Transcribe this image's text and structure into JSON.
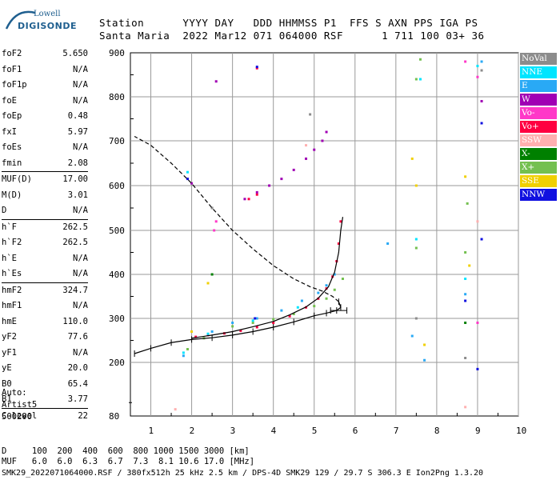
{
  "logo": {
    "line1": "Lowell",
    "line2": "DIGISONDE"
  },
  "header": {
    "labels": "Station      YYYY DAY   DDD HHMMSS P1  FFS S AXN PPS IGA PS",
    "values": "Santa Maria  2022 Mar12 071 064000 RSF      1 711 100 03+ 36"
  },
  "params_group1": [
    {
      "k": "foF2",
      "v": "5.650"
    },
    {
      "k": "foF1",
      "v": "N/A"
    },
    {
      "k": "foF1p",
      "v": "N/A"
    },
    {
      "k": "foE",
      "v": "N/A"
    },
    {
      "k": "foEp",
      "v": "0.48"
    },
    {
      "k": "fxI",
      "v": "5.97"
    },
    {
      "k": "foEs",
      "v": "N/A"
    },
    {
      "k": "fmin",
      "v": "2.08"
    }
  ],
  "params_group2": [
    {
      "k": "MUF(D)",
      "v": "17.00"
    },
    {
      "k": "M(D)",
      "v": "3.01"
    },
    {
      "k": "D",
      "v": "N/A"
    }
  ],
  "params_group3": [
    {
      "k": "h`F",
      "v": "262.5"
    },
    {
      "k": "h`F2",
      "v": "262.5"
    },
    {
      "k": "h`E",
      "v": "N/A"
    },
    {
      "k": "h`Es",
      "v": "N/A"
    }
  ],
  "params_group4": [
    {
      "k": "hmF2",
      "v": "324.7"
    },
    {
      "k": "hmF1",
      "v": "N/A"
    },
    {
      "k": "hmE",
      "v": "110.0"
    },
    {
      "k": "yF2",
      "v": "77.6"
    },
    {
      "k": "yF1",
      "v": "N/A"
    },
    {
      "k": "yE",
      "v": "20.0"
    },
    {
      "k": "B0",
      "v": "65.4"
    },
    {
      "k": "B1",
      "v": "3.77"
    }
  ],
  "params_group5": [
    {
      "k": "C-level",
      "v": "22"
    }
  ],
  "auto": {
    "l1": "Auto:",
    "l2": "Artist5",
    "l3": "500200"
  },
  "legend": [
    {
      "label": "NoVal",
      "color": "#8c8c8c"
    },
    {
      "label": "NNE",
      "color": "#00e5ff"
    },
    {
      "label": "E",
      "color": "#29a9f5"
    },
    {
      "label": "W",
      "color": "#a000b4"
    },
    {
      "label": "Vo-",
      "color": "#ff38c8"
    },
    {
      "label": "Vo+",
      "color": "#ff0040"
    },
    {
      "label": "SSW",
      "color": "#ffb0b0"
    },
    {
      "label": "X-",
      "color": "#008000"
    },
    {
      "label": "X+",
      "color": "#74c050"
    },
    {
      "label": "SSE",
      "color": "#f0d000"
    },
    {
      "label": "NNW",
      "color": "#1010e0"
    }
  ],
  "footer": {
    "d_line": "D     100  200  400  600  800 1000 1500 3000 [km]",
    "muf_line": "MUF   6.0  6.0  6.3  6.7  7.3  8.1 10.6 17.0 [MHz]",
    "status": "SMK29_2022071064000.RSF / 380fx512h 25 kHz 2.5 km / DPS-4D SMK29 129 / 29.7 S 306.3 E Ion2Png 1.3.20"
  },
  "chart_data": {
    "type": "scatter",
    "xlim": [
      0.5,
      10
    ],
    "ylim": [
      80,
      900
    ],
    "x_ticks": [
      1,
      2,
      3,
      4,
      5,
      6,
      7,
      8,
      9,
      10
    ],
    "y_ticks": [
      80,
      200,
      300,
      400,
      500,
      600,
      700,
      800,
      900
    ],
    "grid": true,
    "legend_position": "right",
    "series": [
      {
        "name": "Vo+",
        "color": "#ff0040",
        "points": [
          [
            2.1,
            258
          ],
          [
            2.4,
            262
          ],
          [
            2.8,
            266
          ],
          [
            3.2,
            272
          ],
          [
            3.6,
            280
          ],
          [
            4.0,
            290
          ],
          [
            4.4,
            305
          ],
          [
            4.8,
            325
          ],
          [
            5.1,
            345
          ],
          [
            5.3,
            368
          ],
          [
            5.45,
            395
          ],
          [
            5.55,
            430
          ],
          [
            5.6,
            470
          ],
          [
            5.65,
            520
          ],
          [
            3.6,
            865
          ],
          [
            3.4,
            570
          ],
          [
            3.6,
            580
          ]
        ]
      },
      {
        "name": "X+",
        "color": "#74c050",
        "points": [
          [
            3.0,
            282
          ],
          [
            3.5,
            290
          ],
          [
            4.0,
            298
          ],
          [
            4.5,
            310
          ],
          [
            5.0,
            328
          ],
          [
            5.3,
            345
          ],
          [
            5.5,
            365
          ],
          [
            5.7,
            390
          ],
          [
            7.5,
            460
          ],
          [
            7.5,
            840
          ],
          [
            7.6,
            885
          ],
          [
            8.7,
            450
          ],
          [
            8.75,
            560
          ],
          [
            1.9,
            230
          ],
          [
            2.3,
            255
          ]
        ]
      },
      {
        "name": "W",
        "color": "#a000b4",
        "points": [
          [
            3.3,
            570
          ],
          [
            3.6,
            585
          ],
          [
            3.9,
            600
          ],
          [
            4.2,
            615
          ],
          [
            4.5,
            635
          ],
          [
            4.8,
            660
          ],
          [
            5.0,
            680
          ],
          [
            5.2,
            700
          ],
          [
            5.3,
            720
          ],
          [
            2.0,
            605
          ],
          [
            9.1,
            790
          ],
          [
            2.6,
            835
          ]
        ]
      },
      {
        "name": "E",
        "color": "#29a9f5",
        "points": [
          [
            2.5,
            270
          ],
          [
            3.0,
            290
          ],
          [
            3.6,
            300
          ],
          [
            4.2,
            318
          ],
          [
            4.7,
            340
          ],
          [
            5.1,
            358
          ],
          [
            5.3,
            375
          ],
          [
            5.5,
            400
          ],
          [
            1.8,
            215
          ],
          [
            7.4,
            260
          ],
          [
            7.7,
            205
          ],
          [
            8.7,
            355
          ],
          [
            9.1,
            880
          ],
          [
            6.8,
            470
          ]
        ]
      },
      {
        "name": "NNE",
        "color": "#00e5ff",
        "points": [
          [
            1.8,
            222
          ],
          [
            2.4,
            265
          ],
          [
            3.5,
            295
          ],
          [
            4.6,
            325
          ],
          [
            7.5,
            480
          ],
          [
            8.7,
            390
          ],
          [
            9.0,
            870
          ],
          [
            7.6,
            840
          ],
          [
            1.9,
            630
          ]
        ]
      },
      {
        "name": "NNW",
        "color": "#1010e0",
        "points": [
          [
            3.55,
            300
          ],
          [
            1.9,
            615
          ],
          [
            3.6,
            868
          ],
          [
            9.1,
            740
          ],
          [
            9.1,
            480
          ],
          [
            8.7,
            340
          ],
          [
            9.0,
            185
          ]
        ]
      },
      {
        "name": "SSE",
        "color": "#f0d000",
        "points": [
          [
            2.4,
            380
          ],
          [
            7.4,
            660
          ],
          [
            7.5,
            600
          ],
          [
            8.7,
            620
          ],
          [
            8.8,
            420
          ],
          [
            7.7,
            240
          ],
          [
            2.0,
            270
          ]
        ]
      },
      {
        "name": "Vo-",
        "color": "#ff38c8",
        "points": [
          [
            2.55,
            500
          ],
          [
            2.6,
            520
          ],
          [
            9.0,
            845
          ],
          [
            8.7,
            880
          ],
          [
            9.0,
            290
          ]
        ]
      },
      {
        "name": "SSW",
        "color": "#ffb0b0",
        "points": [
          [
            4.8,
            690
          ],
          [
            9.0,
            520
          ],
          [
            8.7,
            100
          ],
          [
            1.6,
            95
          ]
        ]
      },
      {
        "name": "X-",
        "color": "#008000",
        "points": [
          [
            2.5,
            400
          ],
          [
            8.7,
            290
          ]
        ]
      },
      {
        "name": "NoVal",
        "color": "#8c8c8c",
        "points": [
          [
            2.5,
            550
          ],
          [
            8.7,
            210
          ],
          [
            7.5,
            300
          ],
          [
            9.1,
            860
          ],
          [
            4.9,
            760
          ]
        ]
      }
    ],
    "trace": [
      [
        2.0,
        255
      ],
      [
        2.5,
        262
      ],
      [
        3.0,
        270
      ],
      [
        3.5,
        281
      ],
      [
        4.0,
        293
      ],
      [
        4.4,
        308
      ],
      [
        4.8,
        326
      ],
      [
        5.1,
        346
      ],
      [
        5.35,
        372
      ],
      [
        5.5,
        405
      ],
      [
        5.6,
        450
      ],
      [
        5.65,
        500
      ],
      [
        5.7,
        530
      ]
    ],
    "profile": [
      [
        0.6,
        220
      ],
      [
        1.0,
        232
      ],
      [
        1.5,
        245
      ],
      [
        2.0,
        252
      ],
      [
        2.5,
        256
      ],
      [
        3.0,
        262
      ],
      [
        3.5,
        270
      ],
      [
        4.0,
        280
      ],
      [
        4.5,
        292
      ],
      [
        5.0,
        306
      ],
      [
        5.3,
        312
      ],
      [
        5.55,
        318
      ],
      [
        5.65,
        325
      ],
      [
        5.6,
        338
      ],
      [
        5.45,
        350
      ],
      [
        5.2,
        362
      ],
      [
        4.9,
        372
      ],
      [
        4.5,
        390
      ],
      [
        4.0,
        420
      ],
      [
        3.5,
        458
      ],
      [
        3.0,
        500
      ],
      [
        2.5,
        550
      ],
      [
        2.0,
        605
      ],
      [
        1.5,
        650
      ],
      [
        1.0,
        690
      ],
      [
        0.6,
        710
      ]
    ]
  }
}
